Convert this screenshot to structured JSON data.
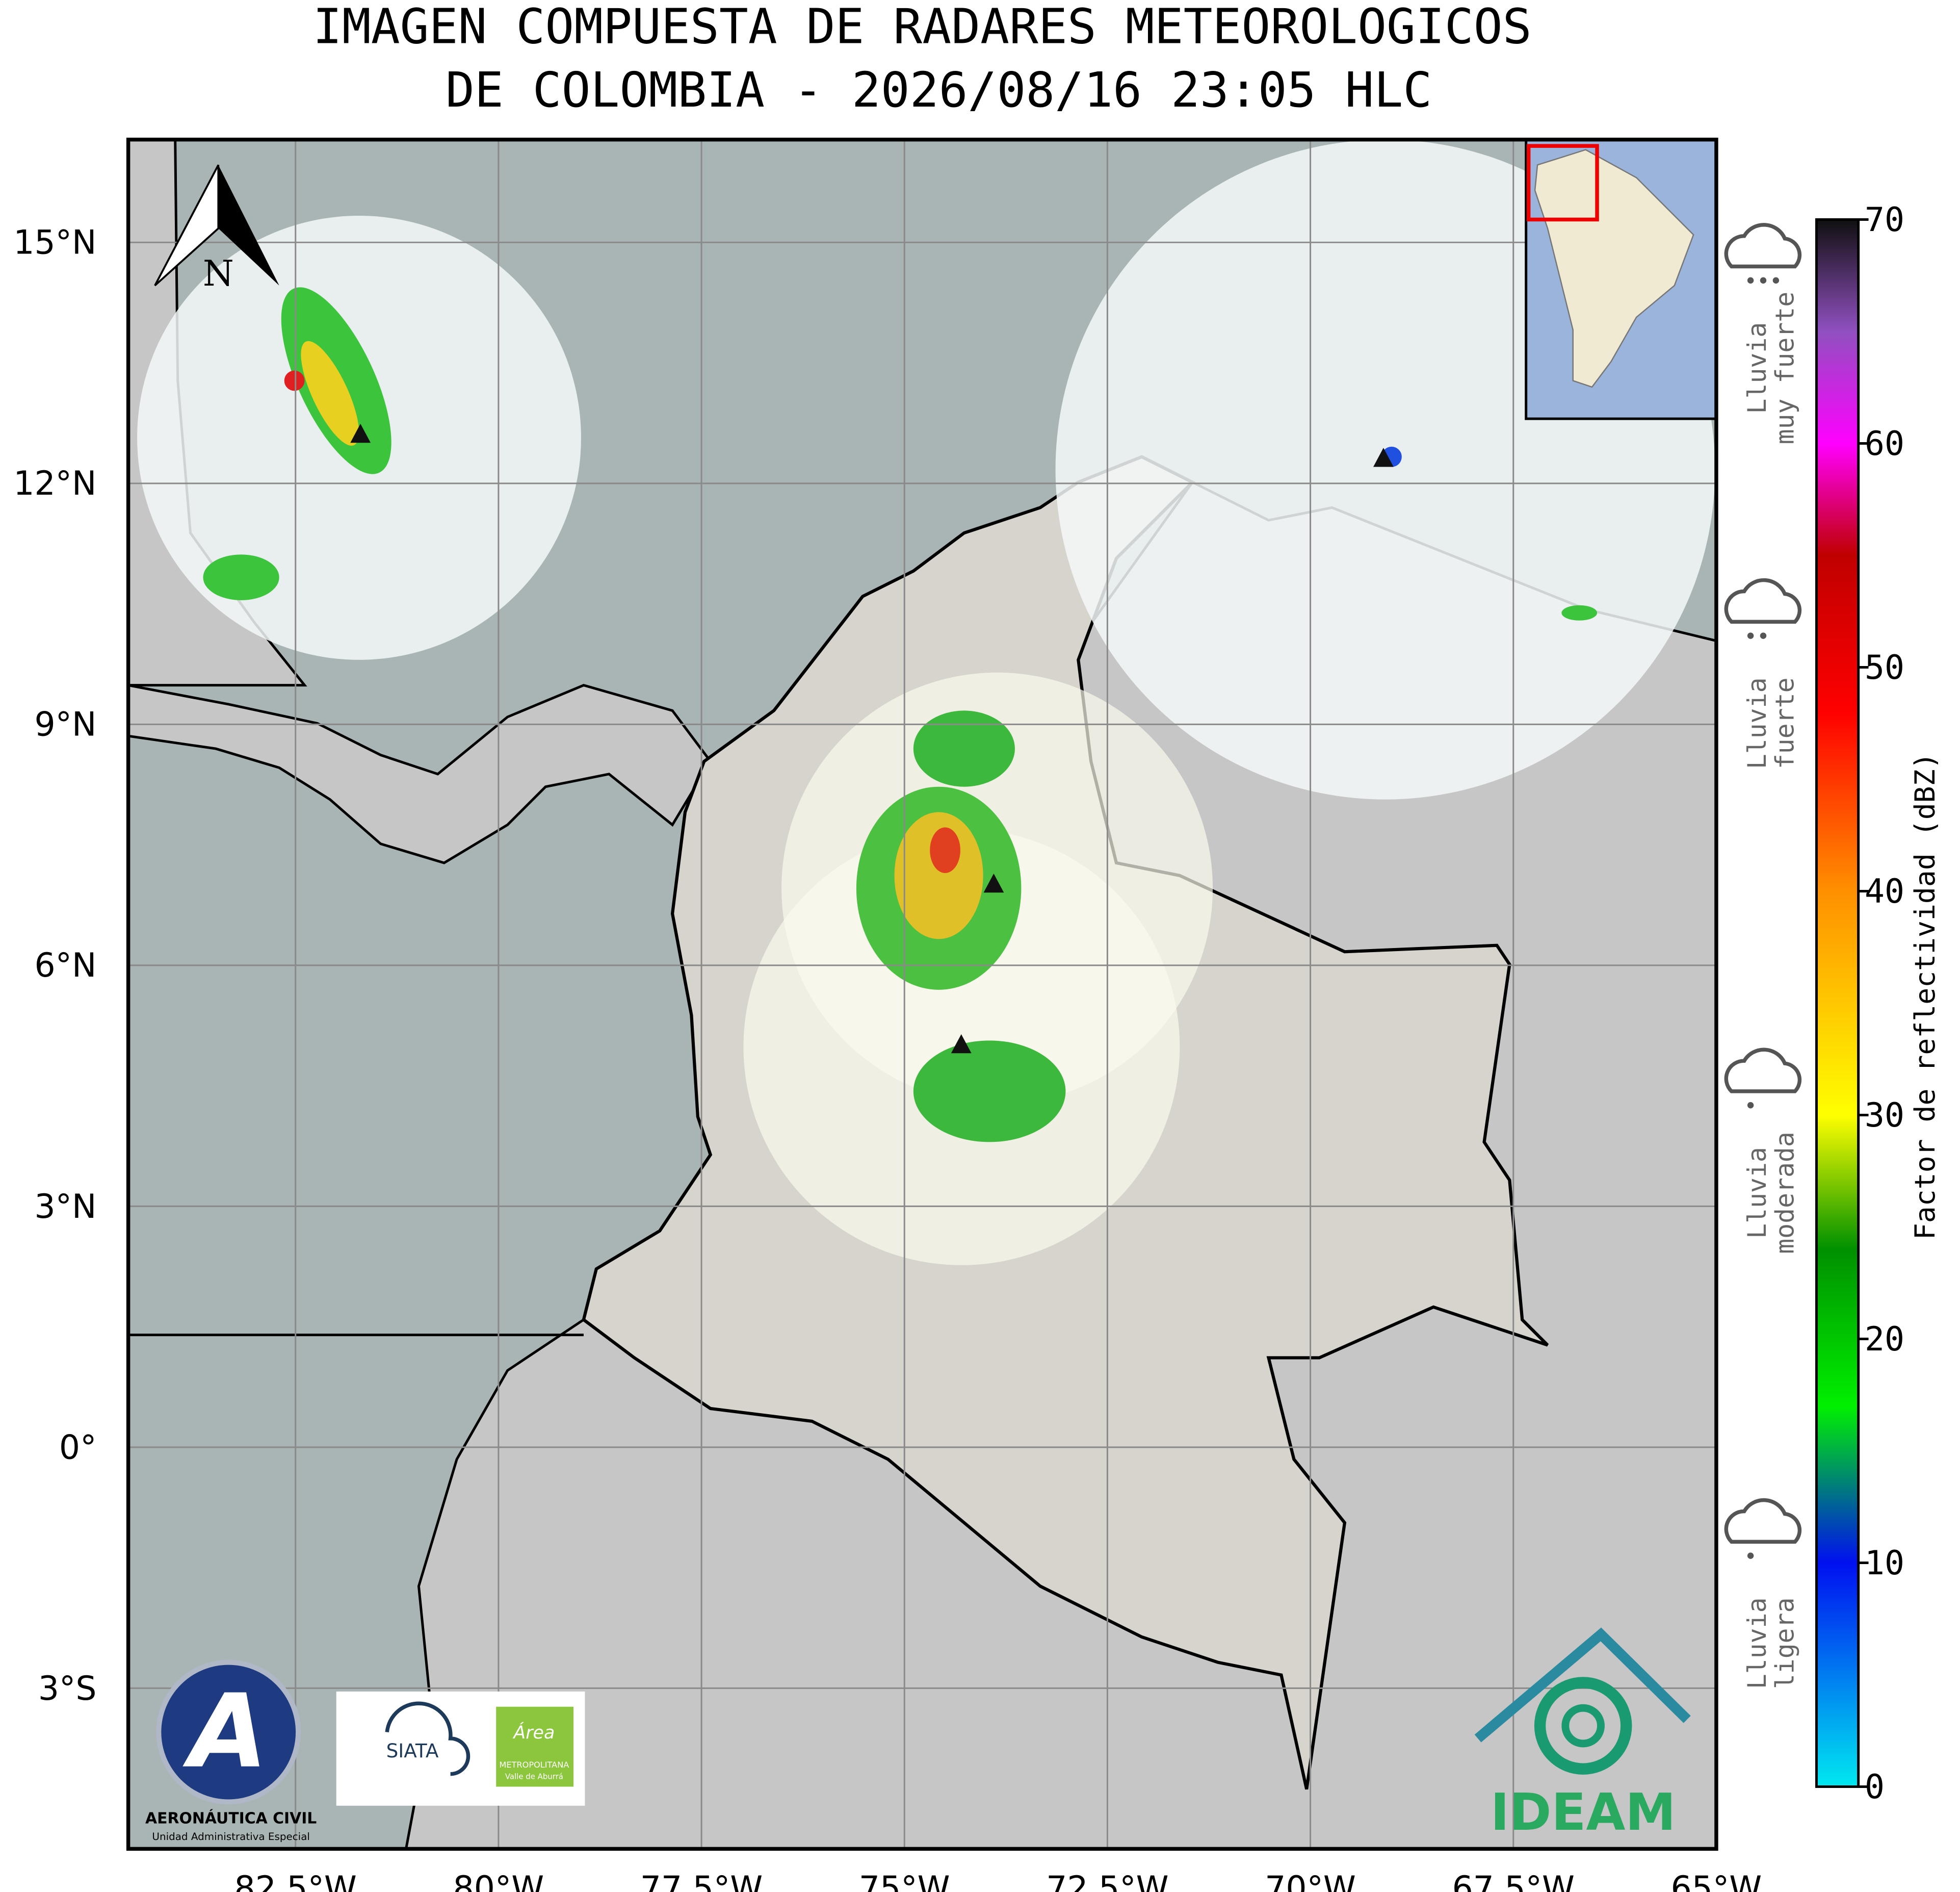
{
  "title": [
    "IMAGEN COMPUESTA DE RADARES METEOROLOGICOS",
    "DE COLOMBIA - 2026/08/16 23:05 HLC"
  ],
  "map": {
    "xlim": [
      -84.56,
      -65
    ],
    "ylim": [
      -5,
      16.28
    ],
    "xticks": [
      {
        "value": -82.5,
        "label": "82.5°W"
      },
      {
        "value": -80,
        "label": "80°W"
      },
      {
        "value": -77.5,
        "label": "77.5°W"
      },
      {
        "value": -75,
        "label": "75°W"
      },
      {
        "value": -72.5,
        "label": "72.5°W"
      },
      {
        "value": -70,
        "label": "70°W"
      },
      {
        "value": -67.5,
        "label": "67.5°W"
      },
      {
        "value": -65,
        "label": "65°W"
      }
    ],
    "yticks": [
      {
        "value": 15,
        "label": "15°N"
      },
      {
        "value": 12,
        "label": "12°N"
      },
      {
        "value": 9,
        "label": "9°N"
      },
      {
        "value": 6,
        "label": "6°N"
      },
      {
        "value": 3,
        "label": "3°N"
      },
      {
        "value": 0,
        "label": "0°"
      },
      {
        "value": -3,
        "label": "3°S"
      }
    ],
    "grid": true,
    "north_label": "N",
    "radars": [
      {
        "lon": -81.7,
        "lat": 12.6
      },
      {
        "lon": -73.9,
        "lat": 7.0
      },
      {
        "lon": -74.3,
        "lat": 5.0
      },
      {
        "lon": -69.1,
        "lat": 12.3
      }
    ]
  },
  "colorbar": {
    "label": "Factor de reflectividad (dBZ)",
    "lim": [
      0,
      70
    ],
    "ticks": [
      0,
      10,
      20,
      30,
      40,
      50,
      60,
      70
    ],
    "stops": [
      {
        "value": 0,
        "color": "#00e8f0"
      },
      {
        "value": 10,
        "color": "#0010f0"
      },
      {
        "value": 17,
        "color": "#00f000"
      },
      {
        "value": 24,
        "color": "#009000"
      },
      {
        "value": 30,
        "color": "#ffff00"
      },
      {
        "value": 40,
        "color": "#ff9000"
      },
      {
        "value": 48,
        "color": "#ff0000"
      },
      {
        "value": 55,
        "color": "#c00000"
      },
      {
        "value": 60,
        "color": "#ff00ff"
      },
      {
        "value": 65,
        "color": "#9050c0"
      },
      {
        "value": 70,
        "color": "#101010"
      }
    ]
  },
  "rain_levels": [
    {
      "lines": [
        "Lluvia",
        "muy fuerte"
      ]
    },
    {
      "lines": [
        "Lluvia",
        "fuerte"
      ]
    },
    {
      "lines": [
        "Lluvia",
        "moderada"
      ]
    },
    {
      "lines": [
        "Lluvia",
        "ligera"
      ]
    }
  ],
  "logos": {
    "aerocivil": [
      "AERONÁUTICA CIVIL",
      "Unidad Administrativa Especial"
    ],
    "siata": "SIATA",
    "area": [
      "Área",
      "METROPOLITANA",
      "Valle de Aburrá"
    ],
    "ideam": "IDEAM"
  }
}
